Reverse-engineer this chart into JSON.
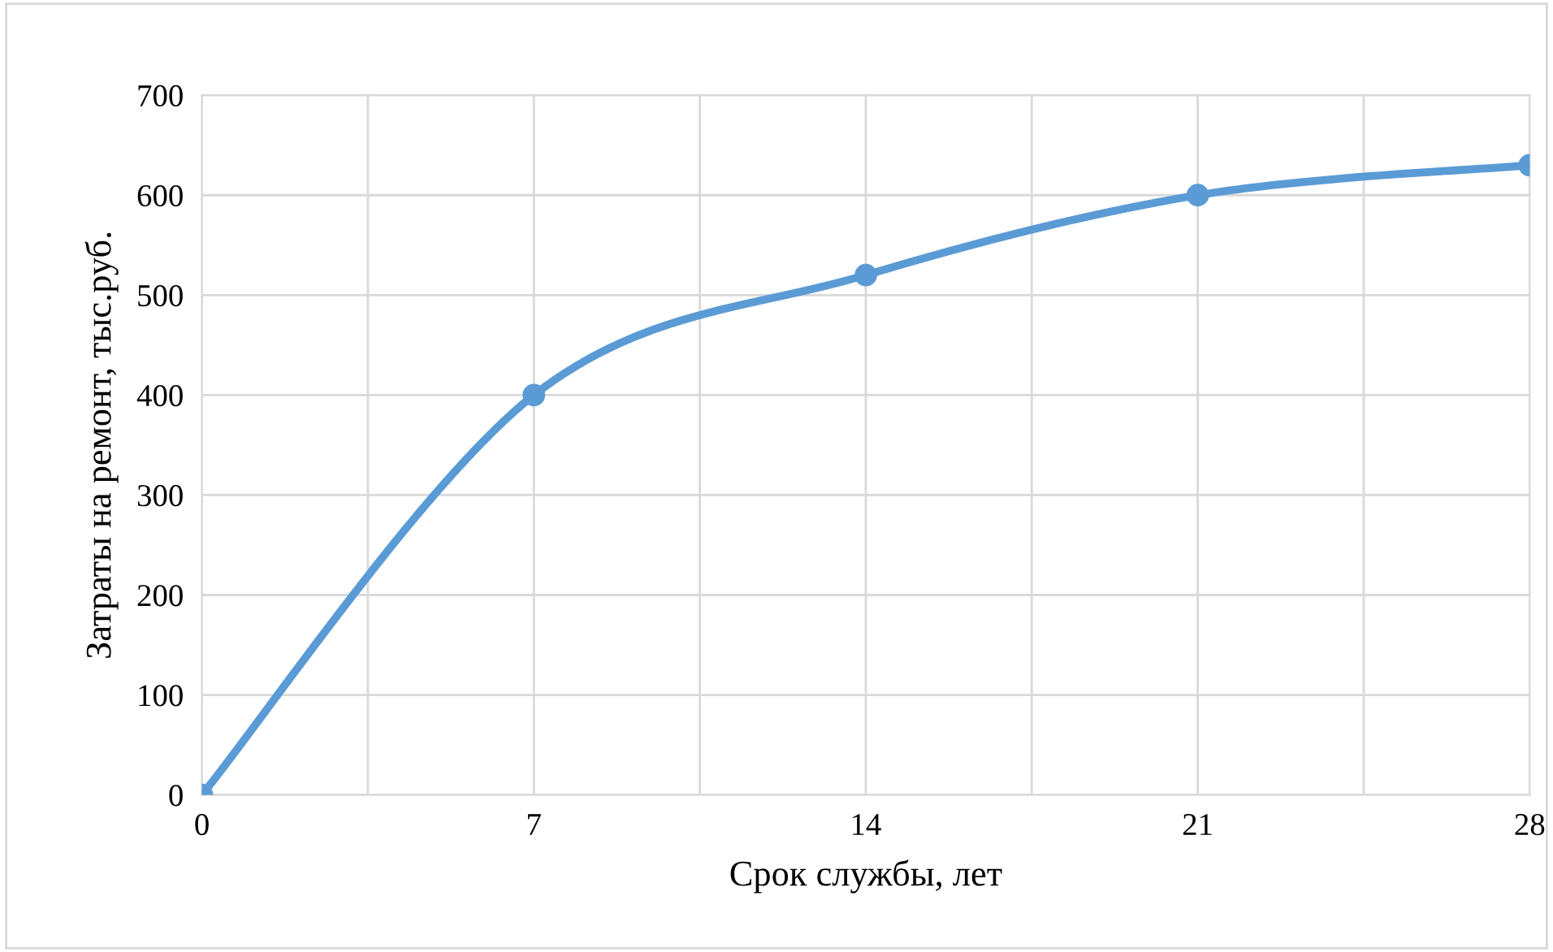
{
  "chart_data": {
    "type": "line",
    "xlabel": "Срок службы, лет",
    "ylabel": "Затраты на ремонт, тыс.руб.",
    "x": [
      0,
      7,
      14,
      21,
      28
    ],
    "series": [
      {
        "color": "#5b9bd5",
        "values": [
          0,
          400,
          520,
          600,
          630
        ]
      }
    ],
    "xlim": [
      0,
      28
    ],
    "ylim": [
      0,
      700
    ],
    "xticks": [
      0,
      {
        "value": 3.5,
        "label": null
      },
      7,
      {
        "value": 10.5,
        "label": null
      },
      14,
      {
        "value": 17.5,
        "label": null
      },
      21,
      {
        "value": 24.5,
        "label": null
      },
      28
    ],
    "yticks": [
      0,
      100,
      200,
      300,
      400,
      500,
      600,
      700
    ],
    "grid": true,
    "marker": "circle",
    "line_style": "solid",
    "legend": false
  }
}
